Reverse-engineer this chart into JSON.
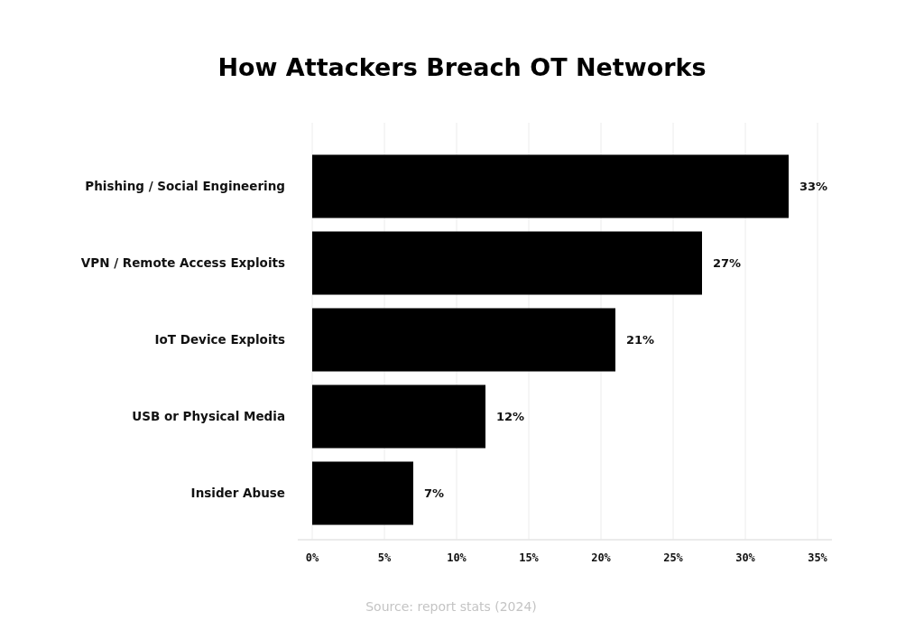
{
  "chart_data": {
    "type": "bar",
    "orientation": "horizontal",
    "title": "How Attackers Breach OT Networks",
    "categories": [
      "Phishing / Social Engineering",
      "VPN / Remote Access Exploits",
      "IoT Device Exploits",
      "USB or Physical Media",
      "Insider Abuse"
    ],
    "values": [
      33,
      27,
      21,
      12,
      7
    ],
    "color": "#000000",
    "value_labels": [
      "33%",
      "27%",
      "21%",
      "12%",
      "7%"
    ],
    "xlim": [
      -1,
      36
    ],
    "xticks": [
      {
        "value": 0,
        "label": "0%"
      },
      {
        "value": 5,
        "label": "5%"
      },
      {
        "value": 10,
        "label": "10%"
      },
      {
        "value": 15,
        "label": "15%"
      },
      {
        "value": 20,
        "label": "20%"
      },
      {
        "value": 25,
        "label": "25%"
      },
      {
        "value": 30,
        "label": "30%"
      },
      {
        "value": 35,
        "label": "35%"
      }
    ],
    "grid": "x",
    "annotations": [
      "Source: report stats (2024)"
    ]
  }
}
